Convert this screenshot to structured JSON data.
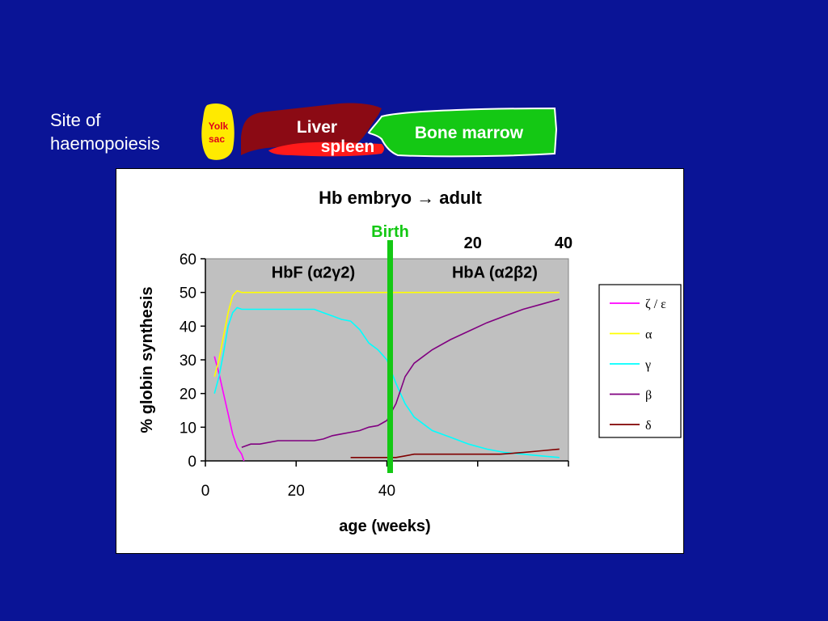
{
  "slide": {
    "site_label_line1": "Site of",
    "site_label_line2": "haemopoiesis",
    "organs": {
      "yolk_line1": "Yolk",
      "yolk_line2": "sac",
      "liver": "Liver",
      "spleen": "spleen",
      "bone_marrow": "Bone marrow"
    },
    "colors": {
      "background": "#0a1496",
      "yolk": "#ffea00",
      "liver": "#8b0a14",
      "spleen": "#ff1a1a",
      "bone_marrow": "#14c814",
      "birth_line": "#14c814",
      "plot_area": "#c0c0c0"
    }
  },
  "chart_data": {
    "type": "line",
    "title": "Hb embryo → adult",
    "title_main": "Hb embryo",
    "title_arrow": "→",
    "title_end": "adult",
    "xlabel": "age (weeks)",
    "ylabel": "% globin synthesis",
    "xlim": [
      0,
      80
    ],
    "ylim": [
      0,
      60
    ],
    "x_ticks": [
      0,
      20,
      40
    ],
    "x_tick_labels": [
      "0",
      "20",
      "40"
    ],
    "y_ticks": [
      0,
      10,
      20,
      30,
      40,
      50,
      60
    ],
    "y_tick_labels": [
      "0",
      "10",
      "20",
      "30",
      "40",
      "50",
      "60"
    ],
    "postnatal_ticks": [
      {
        "x": 60,
        "label": "20"
      },
      {
        "x": 80,
        "label": "40"
      }
    ],
    "birth": {
      "x": 40,
      "label": "Birth"
    },
    "region_labels": [
      {
        "text": "HbF (α2γ2)",
        "x": 22,
        "y": 56
      },
      {
        "text": "HbA (α2β2)",
        "x": 62,
        "y": 56
      }
    ],
    "grid": false,
    "legend_position": "right",
    "series": [
      {
        "name": "ζ / ε",
        "color": "#ff00ff",
        "points": [
          [
            2,
            31
          ],
          [
            3,
            26
          ],
          [
            4,
            20
          ],
          [
            5,
            14
          ],
          [
            6,
            8
          ],
          [
            7,
            4
          ],
          [
            8,
            2
          ],
          [
            8.5,
            0
          ]
        ]
      },
      {
        "name": "α",
        "color": "#ffff00",
        "points": [
          [
            2,
            25
          ],
          [
            3,
            30
          ],
          [
            4,
            37
          ],
          [
            5,
            44
          ],
          [
            6,
            49
          ],
          [
            7,
            50.5
          ],
          [
            8,
            50
          ],
          [
            10,
            50
          ],
          [
            20,
            50
          ],
          [
            30,
            50
          ],
          [
            40,
            50
          ],
          [
            50,
            50
          ],
          [
            60,
            50
          ],
          [
            70,
            50
          ],
          [
            78,
            50
          ]
        ]
      },
      {
        "name": "γ",
        "color": "#00ffff",
        "points": [
          [
            2,
            20
          ],
          [
            3,
            25
          ],
          [
            4,
            32
          ],
          [
            5,
            40
          ],
          [
            6,
            44
          ],
          [
            7,
            45.5
          ],
          [
            8,
            45
          ],
          [
            12,
            45
          ],
          [
            16,
            45
          ],
          [
            20,
            45
          ],
          [
            24,
            45
          ],
          [
            26,
            44
          ],
          [
            28,
            43
          ],
          [
            30,
            42
          ],
          [
            32,
            41.5
          ],
          [
            34,
            39
          ],
          [
            36,
            35
          ],
          [
            38,
            33
          ],
          [
            40,
            30
          ],
          [
            42,
            23
          ],
          [
            44,
            17
          ],
          [
            46,
            13
          ],
          [
            48,
            11
          ],
          [
            50,
            9
          ],
          [
            54,
            7
          ],
          [
            58,
            5
          ],
          [
            62,
            3.5
          ],
          [
            66,
            2.5
          ],
          [
            70,
            2
          ],
          [
            74,
            1.5
          ],
          [
            78,
            1
          ]
        ]
      },
      {
        "name": "β",
        "color": "#800080",
        "points": [
          [
            8,
            4
          ],
          [
            10,
            5
          ],
          [
            12,
            5
          ],
          [
            16,
            6
          ],
          [
            20,
            6
          ],
          [
            24,
            6
          ],
          [
            26,
            6.5
          ],
          [
            28,
            7.5
          ],
          [
            30,
            8
          ],
          [
            32,
            8.5
          ],
          [
            34,
            9
          ],
          [
            36,
            10
          ],
          [
            38,
            10.5
          ],
          [
            40,
            12
          ],
          [
            42,
            17
          ],
          [
            44,
            25
          ],
          [
            46,
            29
          ],
          [
            48,
            31
          ],
          [
            50,
            33
          ],
          [
            54,
            36
          ],
          [
            58,
            38.5
          ],
          [
            62,
            41
          ],
          [
            66,
            43
          ],
          [
            70,
            45
          ],
          [
            74,
            46.5
          ],
          [
            78,
            48
          ]
        ]
      },
      {
        "name": "δ",
        "color": "#800000",
        "points": [
          [
            32,
            1
          ],
          [
            36,
            1
          ],
          [
            40,
            1
          ],
          [
            42,
            1
          ],
          [
            44,
            1.5
          ],
          [
            46,
            2
          ],
          [
            50,
            2
          ],
          [
            55,
            2
          ],
          [
            60,
            2
          ],
          [
            65,
            2
          ],
          [
            70,
            2.5
          ],
          [
            74,
            3
          ],
          [
            78,
            3.5
          ]
        ]
      }
    ]
  }
}
